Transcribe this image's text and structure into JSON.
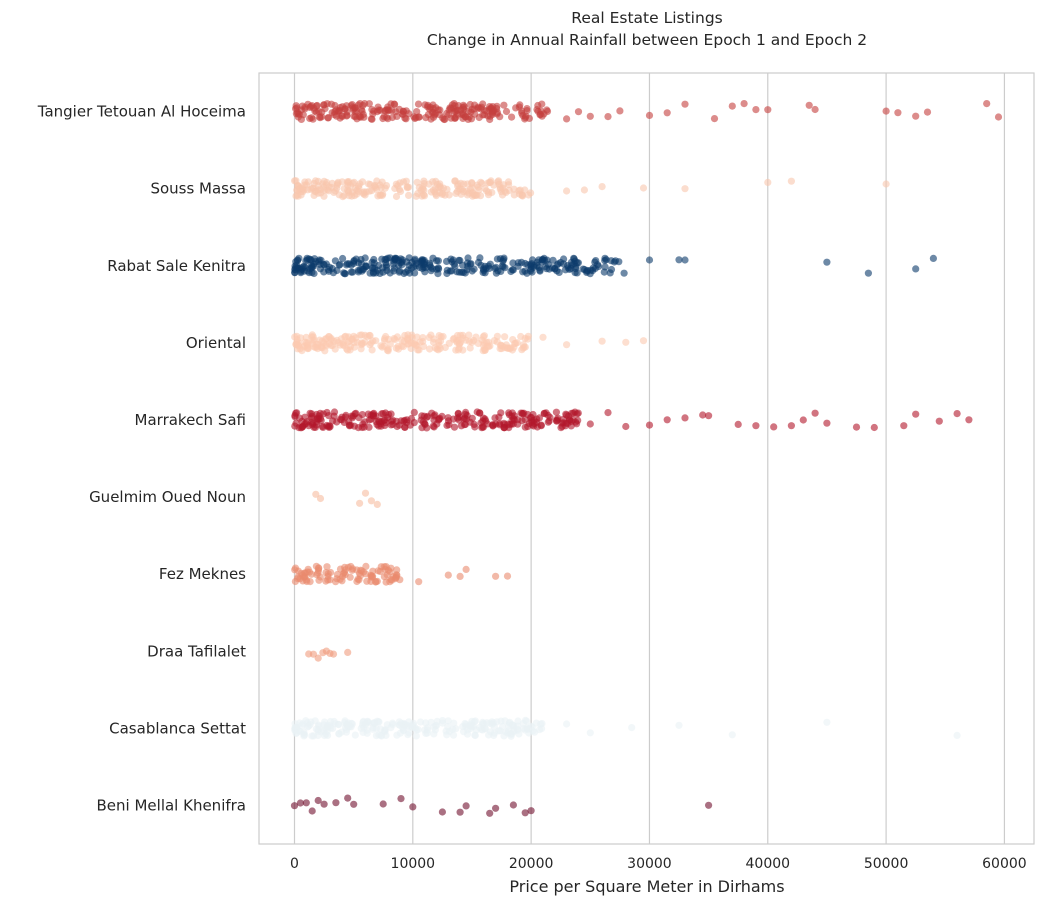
{
  "chart_data": {
    "type": "scatter",
    "subtype": "strip",
    "title": "Real Estate Listings",
    "subtitle": "Change in Annual Rainfall between Epoch 1 and Epoch 2",
    "xlabel": "Price per Square Meter in Dirhams",
    "ylabel": "",
    "xlim": [
      -3000,
      62500
    ],
    "xticks": [
      0,
      10000,
      20000,
      30000,
      40000,
      50000,
      60000
    ],
    "xtick_labels": [
      "0",
      "10000",
      "20000",
      "30000",
      "40000",
      "50000",
      "60000"
    ],
    "grid": "vertical",
    "legend": "none",
    "categories": [
      "Tangier Tetouan Al Hoceima",
      "Souss Massa",
      "Rabat Sale Kenitra",
      "Oriental",
      "Marrakech Safi",
      "Guelmim Oued Noun",
      "Fez Meknes",
      "Draa Tafilalet",
      "Casablanca Settat",
      "Beni Mellal Khenifra"
    ],
    "colors": [
      "#c53f3d",
      "#f9c7ad",
      "#0b3a6b",
      "#fbcab1",
      "#b2182b",
      "#f7bca0",
      "#e98b6e",
      "#f09d7e",
      "#eaf1f5",
      "#72102f"
    ],
    "series": [
      {
        "name": "Tangier Tetouan Al Hoceima",
        "dense_ranges": [
          [
            0,
            21500
          ]
        ],
        "outliers": [
          23000,
          24000,
          25000,
          26500,
          27500,
          30000,
          31500,
          33000,
          35500,
          37000,
          38000,
          39000,
          40000,
          43500,
          44000,
          50000,
          51000,
          52500,
          53500,
          58500,
          59500
        ]
      },
      {
        "name": "Souss Massa",
        "dense_ranges": [
          [
            0,
            20000
          ]
        ],
        "outliers": [
          23000,
          24500,
          26000,
          29500,
          33000,
          40000,
          42000,
          50000
        ]
      },
      {
        "name": "Rabat Sale Kenitra",
        "dense_ranges": [
          [
            0,
            28000
          ]
        ],
        "outliers": [
          30000,
          32500,
          33000,
          45000,
          48500,
          52500,
          54000
        ]
      },
      {
        "name": "Oriental",
        "dense_ranges": [
          [
            0,
            20000
          ]
        ],
        "outliers": [
          21000,
          23000,
          26000,
          28000,
          29500
        ]
      },
      {
        "name": "Marrakech Safi",
        "dense_ranges": [
          [
            0,
            24000
          ]
        ],
        "outliers": [
          25000,
          26500,
          28000,
          30000,
          31500,
          33000,
          34500,
          35000,
          37500,
          39000,
          40500,
          42000,
          43000,
          44000,
          45000,
          47500,
          49000,
          51500,
          52500,
          54500,
          56000,
          57000
        ]
      },
      {
        "name": "Guelmim Oued Noun",
        "dense_ranges": [],
        "outliers": [
          1800,
          2200,
          5500,
          6000,
          6500,
          7000
        ]
      },
      {
        "name": "Fez Meknes",
        "dense_ranges": [
          [
            0,
            9000
          ]
        ],
        "outliers": [
          10500,
          13000,
          14000,
          14500,
          17000,
          18000
        ]
      },
      {
        "name": "Draa Tafilalet",
        "dense_ranges": [],
        "outliers": [
          1200,
          1600,
          2000,
          2400,
          2700,
          3000,
          3300,
          4500
        ]
      },
      {
        "name": "Casablanca Settat",
        "dense_ranges": [
          [
            0,
            21000
          ]
        ],
        "outliers": [
          23000,
          25000,
          28500,
          32500,
          37000,
          45000,
          56000
        ]
      },
      {
        "name": "Beni Mellal Khenifra",
        "dense_ranges": [],
        "outliers": [
          0,
          500,
          1000,
          1500,
          2000,
          2500,
          3500,
          4500,
          5000,
          7500,
          9000,
          10000,
          12500,
          14000,
          14500,
          16500,
          17000,
          18500,
          19500,
          20000,
          35000
        ]
      }
    ]
  }
}
